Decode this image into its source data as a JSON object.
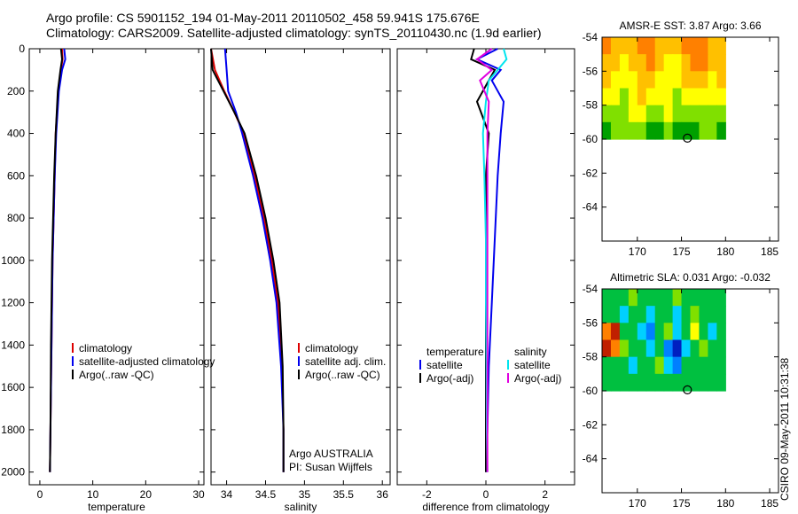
{
  "header": {
    "line1": "Argo profile: CS 5901152_194 01-May-2011 20110502_458 59.941S 175.676E",
    "line2": "Climatology: CARS2009. Satellite-adjusted climatology: synTS_20110430.nc (1.9d earlier)"
  },
  "footer": {
    "stamp": "CSIRO 09-May-2011 10:31:38"
  },
  "colors": {
    "climatology": "#dd0000",
    "satellite": "#0000ee",
    "argo": "#000000",
    "cyan": "#00e5ee",
    "magenta": "#e000e0"
  },
  "chart_data": [
    {
      "type": "line",
      "xlabel": "temperature",
      "ylabel": "",
      "xlim": [
        -2,
        31
      ],
      "ylim": [
        2060,
        0
      ],
      "xticks": [
        0,
        10,
        20,
        30
      ],
      "yticks": [
        0,
        200,
        400,
        600,
        800,
        1000,
        1200,
        1400,
        1600,
        1800,
        2000
      ],
      "legend_entries": [
        "climatology",
        "satellite-adjusted climatology",
        "Argo(..raw -QC)"
      ],
      "series": [
        {
          "name": "climatology",
          "x": [
            4.2,
            4.3,
            4.0,
            3.5,
            3.0,
            2.8,
            2.6,
            2.4,
            2.2,
            2.0,
            1.9
          ],
          "y": [
            0,
            50,
            100,
            200,
            400,
            600,
            800,
            1000,
            1400,
            1800,
            2000
          ]
        },
        {
          "name": "satellite-adjusted climatology",
          "x": [
            4.6,
            4.8,
            4.2,
            3.6,
            3.1,
            2.8,
            2.6,
            2.4,
            2.2,
            2.0,
            1.9
          ],
          "y": [
            0,
            50,
            100,
            200,
            400,
            600,
            800,
            1000,
            1400,
            1800,
            2000
          ]
        },
        {
          "name": "Argo(..raw -QC)",
          "x": [
            4.0,
            4.2,
            3.9,
            3.4,
            3.0,
            2.7,
            2.5,
            2.3,
            2.1,
            2.0,
            1.9
          ],
          "y": [
            0,
            50,
            100,
            200,
            400,
            600,
            800,
            1000,
            1400,
            1800,
            2000
          ]
        }
      ]
    },
    {
      "type": "line",
      "xlabel": "salinity",
      "xlim": [
        33.8,
        36.1
      ],
      "ylim": [
        2060,
        0
      ],
      "xticks": [
        34,
        34.5,
        35,
        35.5,
        36
      ],
      "legend_entries": [
        "climatology",
        "satellite adj. clim.",
        "Argo(..raw -QC)"
      ],
      "annotations": [
        "Argo AUSTRALIA",
        "PI: Susan Wijffels"
      ],
      "series": [
        {
          "name": "climatology",
          "x": [
            33.8,
            33.85,
            33.97,
            34.1,
            34.22,
            34.36,
            34.48,
            34.58,
            34.66,
            34.71,
            34.73,
            34.73
          ],
          "y": [
            0,
            100,
            200,
            300,
            400,
            600,
            800,
            1000,
            1200,
            1500,
            1800,
            2000
          ]
        },
        {
          "name": "satellite adj. clim.",
          "x": [
            33.98,
            34.0,
            34.02,
            34.12,
            34.2,
            34.34,
            34.46,
            34.56,
            34.64,
            34.7,
            34.73,
            34.73
          ],
          "y": [
            0,
            100,
            200,
            300,
            400,
            600,
            800,
            1000,
            1200,
            1500,
            1800,
            2000
          ]
        },
        {
          "name": "Argo(..raw -QC)",
          "x": [
            33.8,
            33.82,
            33.96,
            34.1,
            34.23,
            34.38,
            34.5,
            34.6,
            34.68,
            34.72,
            34.73,
            34.73
          ],
          "y": [
            0,
            100,
            200,
            300,
            400,
            600,
            800,
            1000,
            1200,
            1500,
            1800,
            2000
          ]
        }
      ]
    },
    {
      "type": "line",
      "xlabel": "difference from climatology",
      "xlim": [
        -3,
        3
      ],
      "ylim": [
        2060,
        0
      ],
      "xticks": [
        -2,
        0,
        2
      ],
      "legend_columns": [
        {
          "heading": "temperature",
          "entries": [
            "satellite",
            "Argo(-adj)"
          ]
        },
        {
          "heading": "salinity",
          "entries": [
            "satellite",
            "Argo(-adj)"
          ]
        }
      ],
      "series": [
        {
          "name": "temperature satellite",
          "x": [
            0.4,
            -0.3,
            0.5,
            0.2,
            0.6,
            0.5,
            0.4,
            0.3,
            0.2,
            0.1,
            0.05,
            0.0
          ],
          "y": [
            0,
            50,
            100,
            150,
            250,
            400,
            600,
            900,
            1200,
            1500,
            1800,
            2000
          ]
        },
        {
          "name": "temperature Argo(-adj)",
          "x": [
            -0.4,
            -0.5,
            0.3,
            0.1,
            -0.3,
            0.1,
            0.0,
            0.0,
            0.0,
            0.0,
            0.0,
            0.0
          ],
          "y": [
            0,
            50,
            100,
            150,
            250,
            400,
            600,
            900,
            1200,
            1500,
            1800,
            2000
          ]
        },
        {
          "name": "salinity satellite",
          "x": [
            0.6,
            0.7,
            0.4,
            0.1,
            0.0,
            -0.1,
            -0.05,
            0.0,
            0.0,
            0.02,
            0.03,
            0.05
          ],
          "y": [
            0,
            50,
            100,
            150,
            250,
            400,
            600,
            900,
            1200,
            1500,
            1800,
            2000
          ]
        },
        {
          "name": "salinity Argo(-adj)",
          "x": [
            0.2,
            -0.3,
            0.2,
            -0.2,
            0.1,
            0.05,
            0.05,
            0.05,
            0.05,
            0.05,
            0.05,
            0.05
          ],
          "y": [
            0,
            50,
            100,
            150,
            250,
            400,
            600,
            900,
            1200,
            1500,
            1800,
            2000
          ]
        }
      ]
    },
    {
      "type": "heatmap",
      "title": "AMSR-E SST: 3.87 Argo: 3.66",
      "xlim": [
        166,
        186
      ],
      "ylim": [
        -66,
        -54
      ],
      "xticks": [
        170,
        175,
        180,
        185
      ],
      "yticks": [
        -54,
        -56,
        -58,
        -60,
        -62,
        -64
      ],
      "grid_extent": {
        "lon": [
          166,
          180
        ],
        "lat": [
          -60,
          -54
        ]
      },
      "marker": {
        "lon": 175.676,
        "lat": -59.941
      },
      "colorscale": [
        "#00a000",
        "#80e000",
        "#ffff00",
        "#ffc000",
        "#ff8000"
      ],
      "grid": [
        [
          4,
          3,
          3,
          3,
          4,
          4,
          3,
          3,
          3,
          4,
          4,
          4,
          3,
          3
        ],
        [
          3,
          3,
          2,
          3,
          3,
          4,
          3,
          2,
          2,
          3,
          4,
          4,
          3,
          3
        ],
        [
          3,
          2,
          2,
          2,
          3,
          3,
          2,
          2,
          2,
          3,
          3,
          3,
          2,
          3
        ],
        [
          2,
          2,
          1,
          2,
          3,
          2,
          2,
          2,
          1,
          2,
          2,
          2,
          2,
          2
        ],
        [
          1,
          1,
          1,
          2,
          2,
          1,
          1,
          2,
          1,
          1,
          1,
          1,
          1,
          1
        ],
        [
          0,
          1,
          1,
          1,
          1,
          0,
          0,
          1,
          0,
          0,
          0,
          1,
          1,
          0
        ]
      ]
    },
    {
      "type": "heatmap",
      "title": "Altimetric SLA: 0.031 Argo: -0.032",
      "xlim": [
        166,
        186
      ],
      "ylim": [
        -66,
        -54
      ],
      "xticks": [
        170,
        175,
        180,
        185
      ],
      "yticks": [
        -54,
        -56,
        -58,
        -60,
        -62,
        -64
      ],
      "grid_extent": {
        "lon": [
          166,
          180
        ],
        "lat": [
          -60,
          -54
        ]
      },
      "marker": {
        "lon": 175.676,
        "lat": -59.941
      },
      "colorscale": [
        "#0020c0",
        "#0080ff",
        "#00d0ff",
        "#00c040",
        "#80e000",
        "#ffff00",
        "#ff8000",
        "#c02000"
      ],
      "grid": [
        [
          3,
          3,
          3,
          4,
          3,
          3,
          3,
          3,
          4,
          3,
          3,
          3,
          3,
          3
        ],
        [
          3,
          3,
          2,
          3,
          3,
          2,
          3,
          3,
          2,
          3,
          4,
          3,
          3,
          3
        ],
        [
          6,
          7,
          3,
          3,
          2,
          1,
          3,
          4,
          2,
          3,
          5,
          3,
          2,
          3
        ],
        [
          7,
          6,
          4,
          3,
          3,
          2,
          3,
          1,
          0,
          2,
          3,
          4,
          3,
          3
        ],
        [
          3,
          3,
          3,
          2,
          3,
          3,
          4,
          2,
          1,
          3,
          3,
          3,
          3,
          3
        ],
        [
          3,
          3,
          3,
          3,
          3,
          3,
          3,
          3,
          3,
          3,
          3,
          3,
          3,
          3
        ]
      ]
    }
  ]
}
